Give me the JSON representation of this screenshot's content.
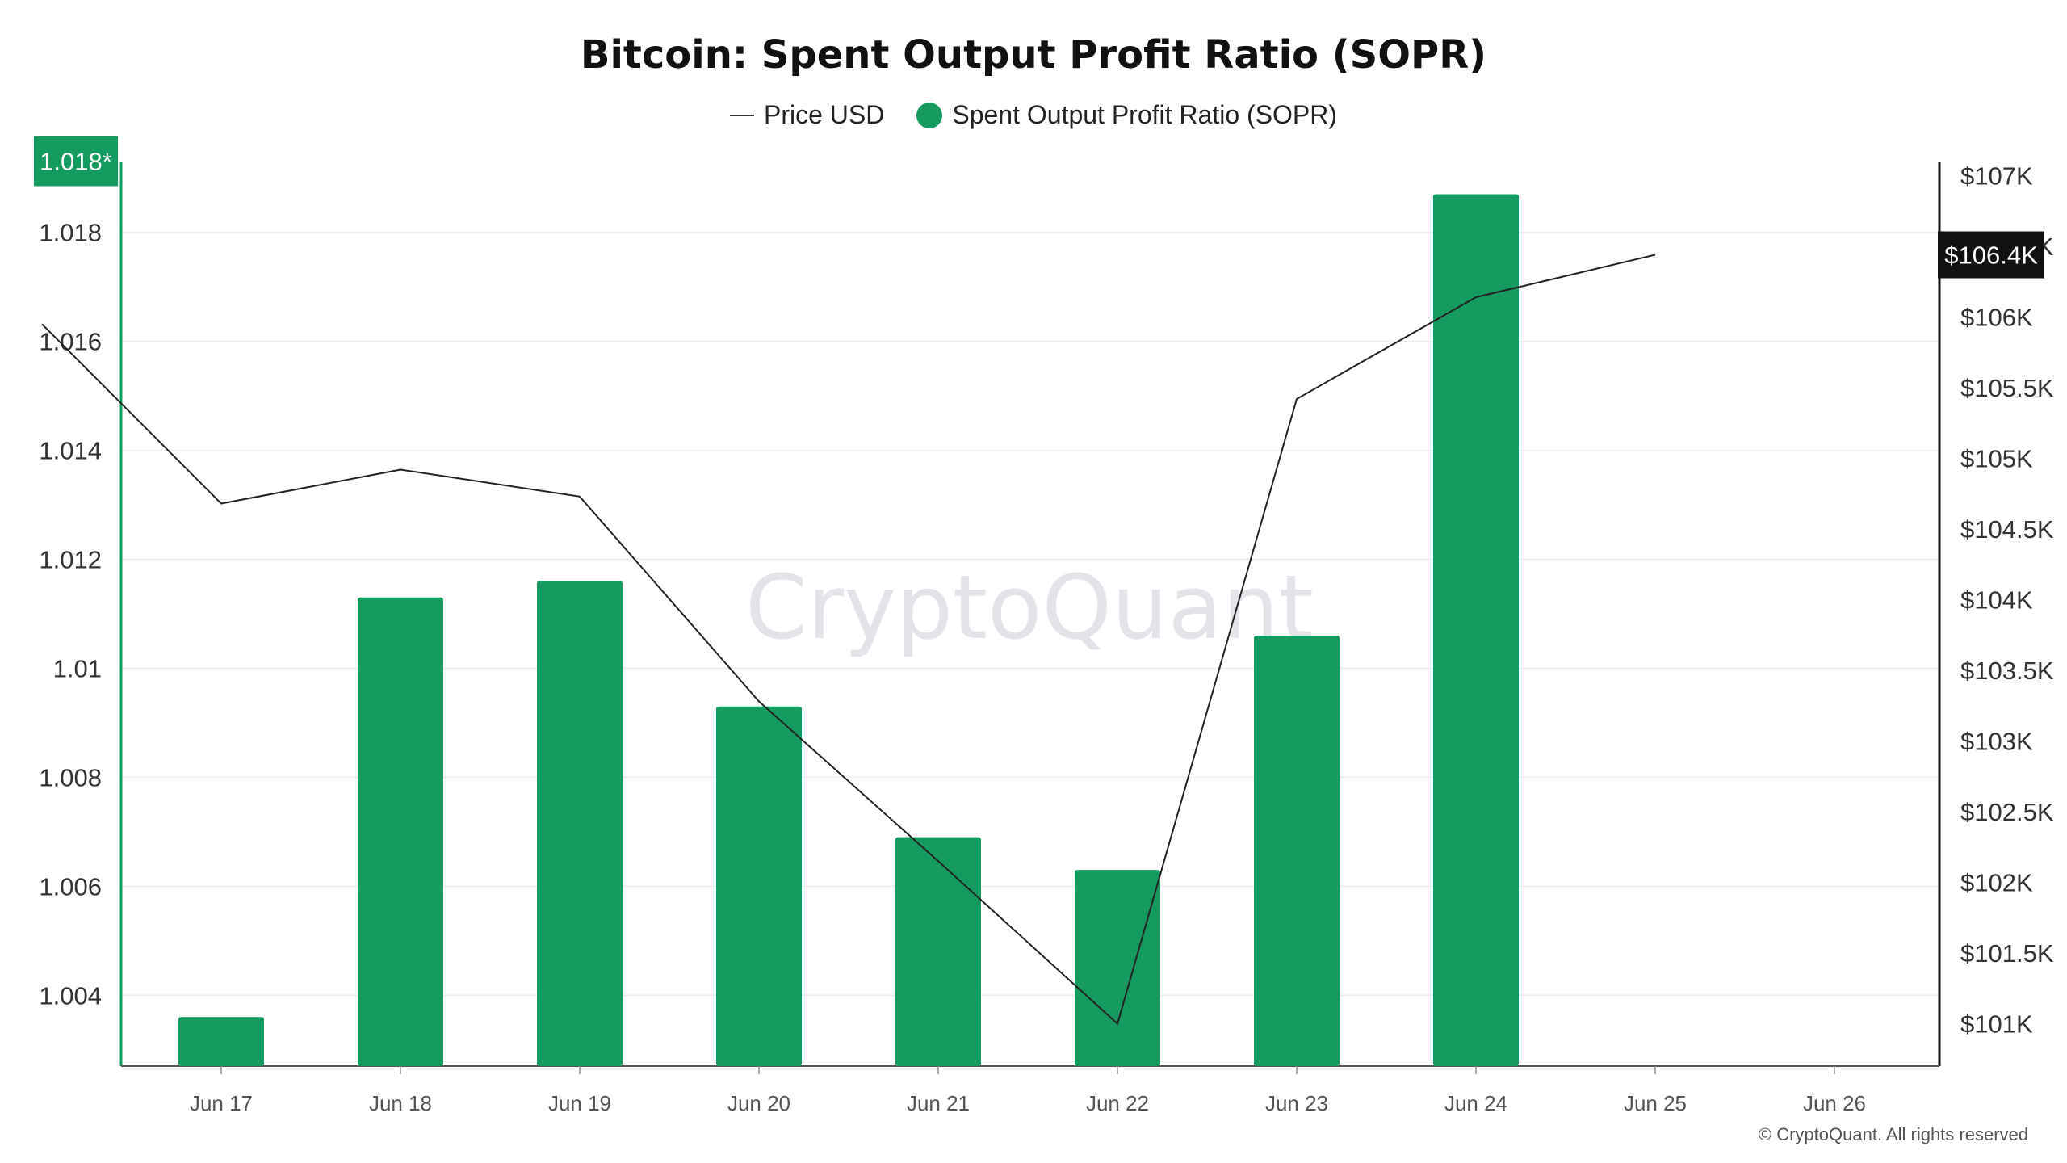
{
  "title": "Bitcoin: Spent Output Profit Ratio (SOPR)",
  "copyright": "© CryptoQuant. All rights reserved",
  "watermark": "CryptoQuant",
  "colors": {
    "bar": "#159a60",
    "line": "#222222",
    "grid": "#eeeeee",
    "watermark": "#e3e3ea",
    "price_tag_bg": "#111111"
  },
  "chart_data": {
    "type": "bar",
    "categories": [
      "Jun 17",
      "Jun 18",
      "Jun 19",
      "Jun 20",
      "Jun 21",
      "Jun 22",
      "Jun 23",
      "Jun 24",
      "Jun 25",
      "Jun 26"
    ],
    "series": [
      {
        "name": "Spent Output Profit Ratio (SOPR)",
        "axis": "left",
        "type": "bar",
        "values": [
          1.0036,
          1.0113,
          1.0116,
          1.0093,
          1.0069,
          1.0063,
          1.0106,
          1.0187,
          null,
          null
        ]
      },
      {
        "name": "Price USD",
        "axis": "right",
        "type": "line",
        "x": [
          "Jun 16",
          "Jun 17",
          "Jun 18",
          "Jun 19",
          "Jun 20",
          "Jun 21",
          "Jun 22",
          "Jun 23",
          "Jun 24",
          "Jun 25"
        ],
        "values": [
          105950,
          104680,
          104920,
          104730,
          103280,
          102150,
          101000,
          105420,
          106140,
          106440
        ]
      }
    ],
    "y_left": {
      "ticks": [
        "1.004",
        "1.006",
        "1.008",
        "1.01",
        "1.012",
        "1.014",
        "1.016",
        "1.018"
      ],
      "range": [
        1.0027,
        1.0193
      ]
    },
    "y_right": {
      "ticks": [
        "$101K",
        "$101.5K",
        "$102K",
        "$102.5K",
        "$103K",
        "$103.5K",
        "$104K",
        "$104.5K",
        "$105K",
        "$105.5K",
        "$106K",
        "$106.5K",
        "$107K"
      ],
      "range": [
        100700,
        107100
      ]
    },
    "current_left_label": "1.018*",
    "current_left_value": 1.0187,
    "current_price_label": "$106.4K",
    "current_price_value": 106440,
    "grid": true,
    "legend": "top-center"
  }
}
